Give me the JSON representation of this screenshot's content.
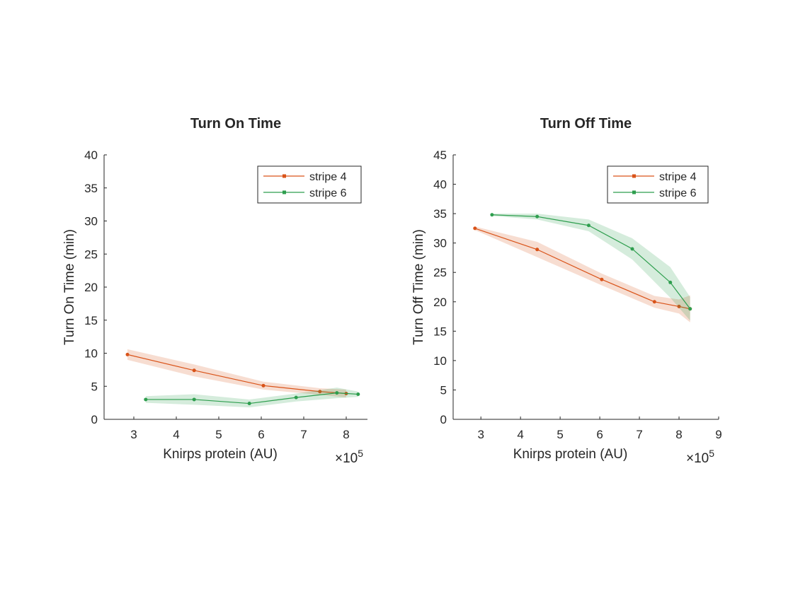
{
  "chart_data": [
    {
      "type": "line",
      "title": "Turn On Time",
      "xlabel": "Knirps protein (AU)",
      "ylabel": "Turn On Time (min)",
      "x_multiplier_label": "×10",
      "x_multiplier_exp": "5",
      "xlim": [
        2.3,
        8.5
      ],
      "ylim": [
        0,
        40
      ],
      "xticks": [
        3,
        4,
        5,
        6,
        7,
        8
      ],
      "yticks": [
        0,
        5,
        10,
        15,
        20,
        25,
        30,
        35,
        40
      ],
      "legend_position": "top-right",
      "grid": false,
      "series": [
        {
          "name": "stripe 4",
          "color": "#d95319",
          "x": [
            2.85,
            4.42,
            6.05,
            7.38,
            8.0
          ],
          "y": [
            9.8,
            7.4,
            5.1,
            4.2,
            3.9
          ],
          "err": [
            0.8,
            0.9,
            0.6,
            0.5,
            0.6
          ]
        },
        {
          "name": "stripe 6",
          "color": "#2e9e4e",
          "x": [
            3.28,
            4.42,
            5.72,
            6.82,
            7.78,
            8.28
          ],
          "y": [
            3.0,
            3.0,
            2.4,
            3.3,
            4.0,
            3.8
          ],
          "err": [
            0.5,
            0.8,
            0.6,
            0.6,
            0.8,
            0.4
          ]
        }
      ]
    },
    {
      "type": "line",
      "title": "Turn Off Time",
      "xlabel": "Knirps protein (AU)",
      "ylabel": "Turn Off Time (min)",
      "x_multiplier_label": "×10",
      "x_multiplier_exp": "5",
      "xlim": [
        2.3,
        9
      ],
      "ylim": [
        0,
        45
      ],
      "xticks": [
        3,
        4,
        5,
        6,
        7,
        8,
        9
      ],
      "yticks": [
        0,
        5,
        10,
        15,
        20,
        25,
        30,
        35,
        40,
        45
      ],
      "legend_position": "top-right",
      "grid": false,
      "series": [
        {
          "name": "stripe 4",
          "color": "#d95319",
          "x": [
            2.85,
            4.42,
            6.05,
            7.38,
            8.0,
            8.28
          ],
          "y": [
            32.5,
            28.9,
            23.8,
            20.0,
            19.2,
            18.8
          ],
          "err": [
            0.3,
            1.3,
            1.0,
            1.0,
            1.2,
            2.3
          ]
        },
        {
          "name": "stripe 6",
          "color": "#2e9e4e",
          "x": [
            3.28,
            4.42,
            5.72,
            6.82,
            7.78,
            8.28
          ],
          "y": [
            34.8,
            34.5,
            33.0,
            29.0,
            23.3,
            18.8
          ],
          "err": [
            0.2,
            0.5,
            1.0,
            1.8,
            2.6,
            2.0
          ]
        }
      ]
    }
  ]
}
